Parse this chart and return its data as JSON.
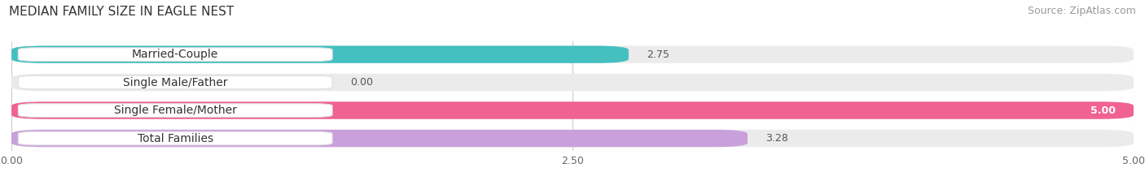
{
  "title": "MEDIAN FAMILY SIZE IN EAGLE NEST",
  "source": "Source: ZipAtlas.com",
  "categories": [
    "Married-Couple",
    "Single Male/Father",
    "Single Female/Mother",
    "Total Families"
  ],
  "values": [
    2.75,
    0.0,
    5.0,
    3.28
  ],
  "bar_colors": [
    "#45bfc0",
    "#a8c4e8",
    "#f06292",
    "#c9a0dc"
  ],
  "xlim": [
    0,
    5.0
  ],
  "xticks": [
    0.0,
    2.5,
    5.0
  ],
  "xtick_labels": [
    "0.00",
    "2.50",
    "5.00"
  ],
  "background_color": "#ffffff",
  "bar_bg_color": "#ebebeb",
  "label_box_color": "#ffffff",
  "value_label_color": "#555555",
  "title_fontsize": 11,
  "source_fontsize": 9,
  "tick_fontsize": 9,
  "bar_label_fontsize": 10,
  "value_fontsize": 9
}
